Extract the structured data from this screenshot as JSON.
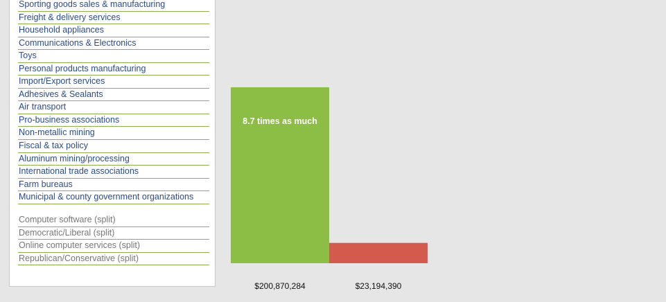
{
  "sidebar": {
    "industries": [
      "Sporting goods sales & manufacturing",
      "Freight & delivery services",
      "Household appliances",
      "Communications & Electronics",
      "Toys",
      "Personal products manufacturing",
      "Import/Export services",
      "Adhesives & Sealants",
      "Air transport",
      "Pro-business associations",
      "Non-metallic mining",
      "Fiscal & tax policy",
      "Aluminum mining/processing",
      "International trade associations",
      "Farm bureaus",
      "Municipal & county government organizations"
    ],
    "split_industries": [
      "Computer software (split)",
      "Democratic/Liberal (split)",
      "Online computer services (split)",
      "Republican/Conservative (split)"
    ]
  },
  "chart_data": {
    "type": "bar",
    "categories": [
      "",
      ""
    ],
    "values": [
      200870284,
      23194390
    ],
    "value_labels": [
      "$200,870,284",
      "$23,194,390"
    ],
    "colors": [
      "#8cbd45",
      "#d35a4c"
    ],
    "annotation": "8.7 times as much",
    "ylim": [
      0,
      200870284
    ],
    "grid": false,
    "legend": "none"
  }
}
